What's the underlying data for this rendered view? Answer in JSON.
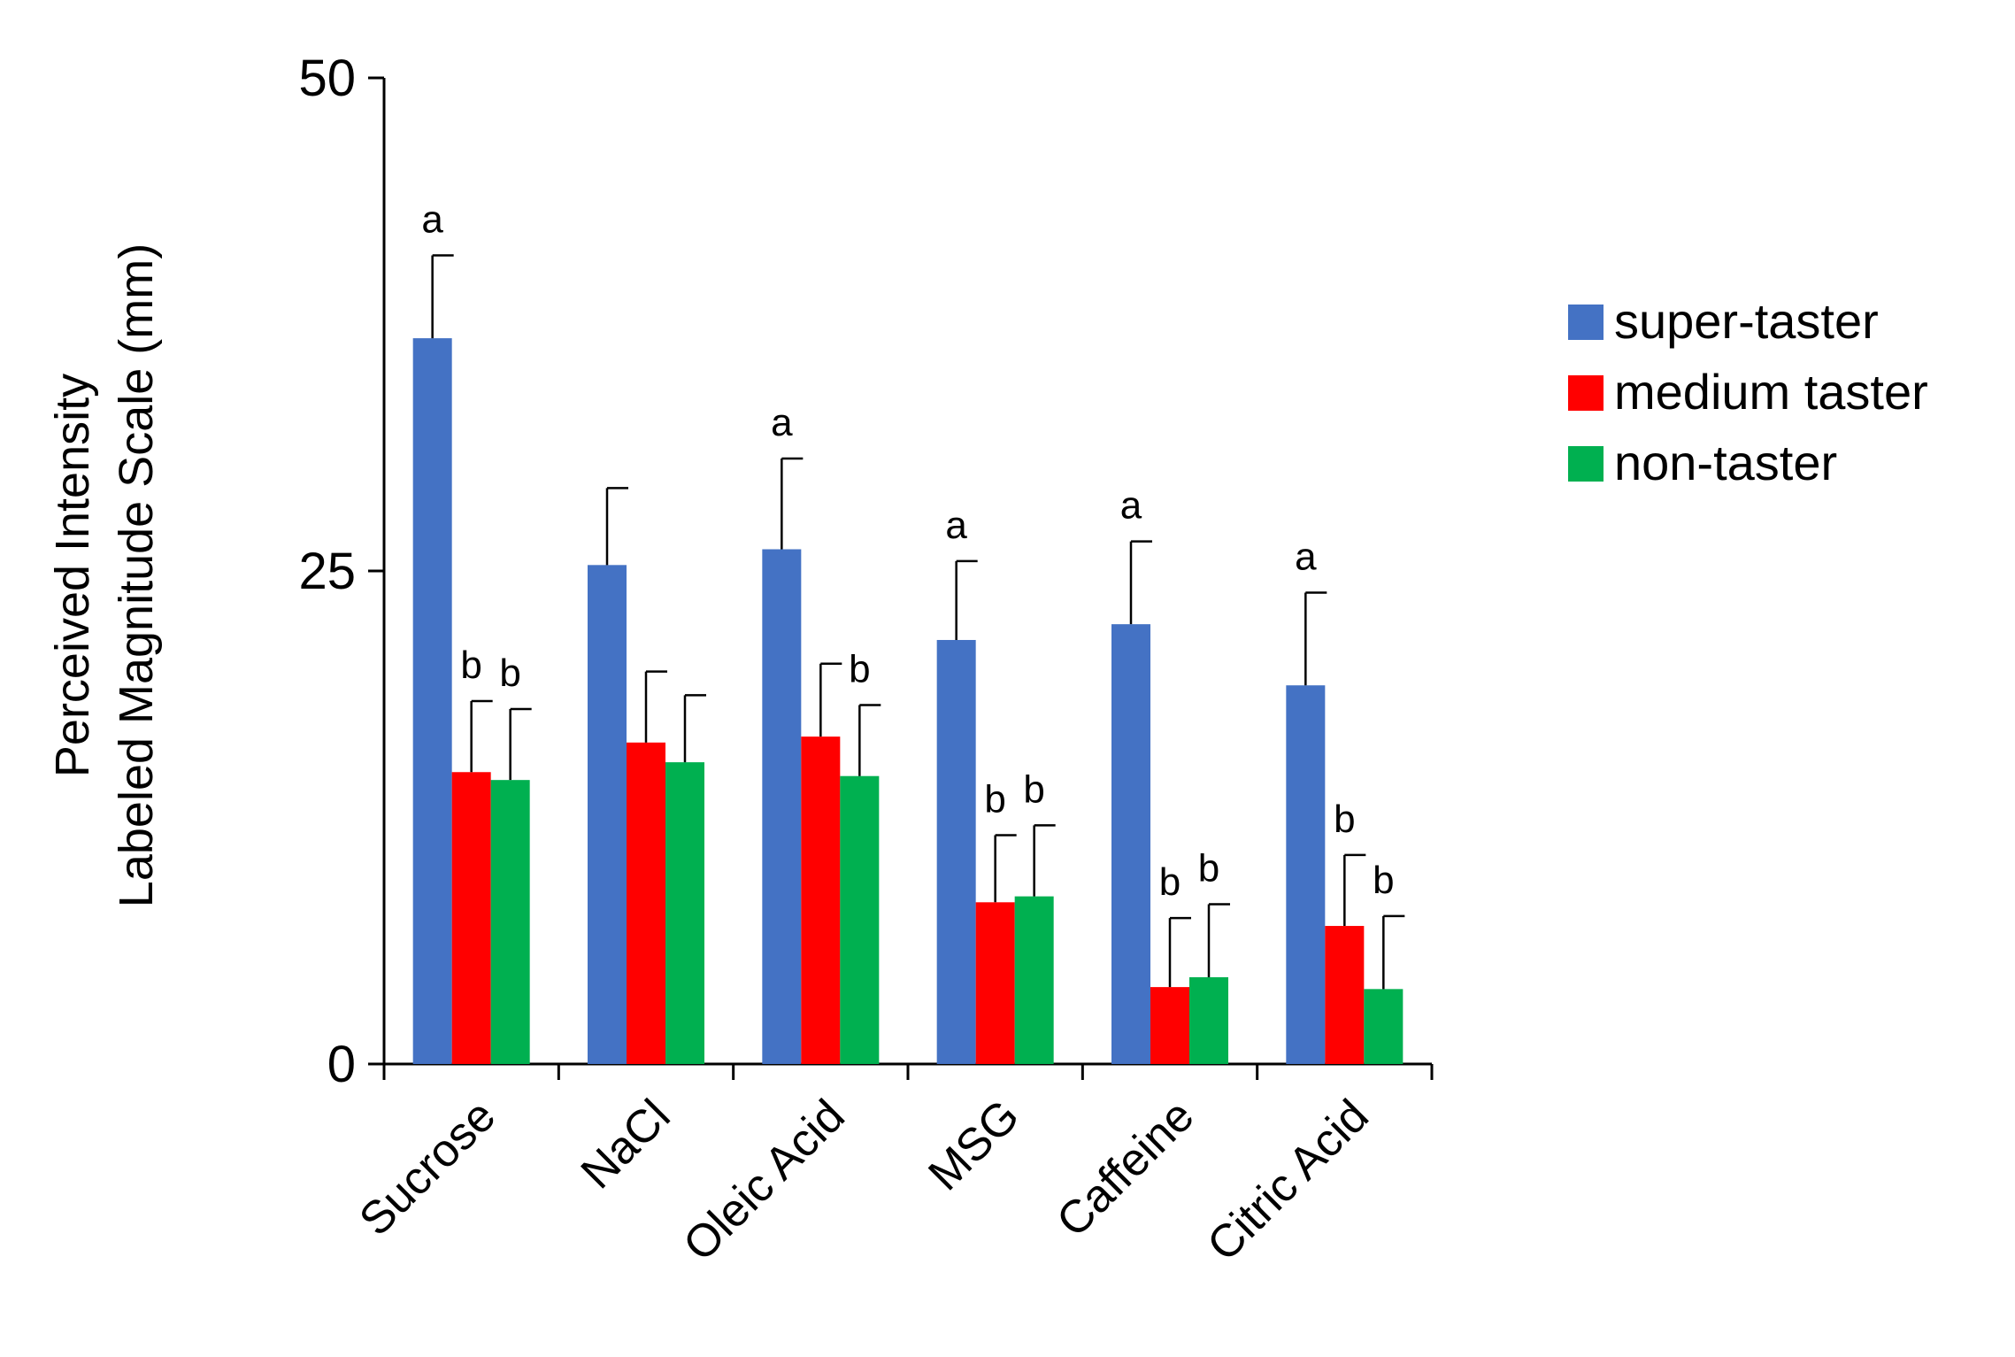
{
  "chart_data": {
    "type": "bar",
    "title": "",
    "xlabel": "",
    "ylabel": [
      "Perceived Intensity",
      "Labeled Magnitude Scale (mm)"
    ],
    "ylim": [
      0,
      50
    ],
    "yticks": [
      0,
      25,
      50
    ],
    "grid": false,
    "legend_position": "right",
    "categories": [
      "Sucrose",
      "NaCl",
      "Oleic Acid",
      "MSG",
      "Caffeine",
      "Citric Acid"
    ],
    "series": [
      {
        "name": "super-taster",
        "color": "#4472C4",
        "values": [
          36.8,
          25.3,
          26.1,
          21.5,
          22.3,
          19.2
        ],
        "errors": [
          4.2,
          3.9,
          4.6,
          4.0,
          4.2,
          4.7
        ],
        "labels": [
          "a",
          "",
          "a",
          "a",
          "a",
          "a"
        ]
      },
      {
        "name": "medium taster",
        "color": "#FF0000",
        "values": [
          14.8,
          16.3,
          16.6,
          8.2,
          3.9,
          7.0
        ],
        "errors": [
          3.6,
          3.6,
          3.7,
          3.4,
          3.5,
          3.6
        ],
        "labels": [
          "b",
          "",
          "",
          "b",
          "b",
          "b"
        ]
      },
      {
        "name": "non-taster",
        "color": "#00B050",
        "values": [
          14.4,
          15.3,
          14.6,
          8.5,
          4.4,
          3.8
        ],
        "errors": [
          3.6,
          3.4,
          3.6,
          3.6,
          3.7,
          3.7
        ],
        "labels": [
          "b",
          "",
          "b",
          "b",
          "b",
          "b"
        ]
      }
    ]
  }
}
